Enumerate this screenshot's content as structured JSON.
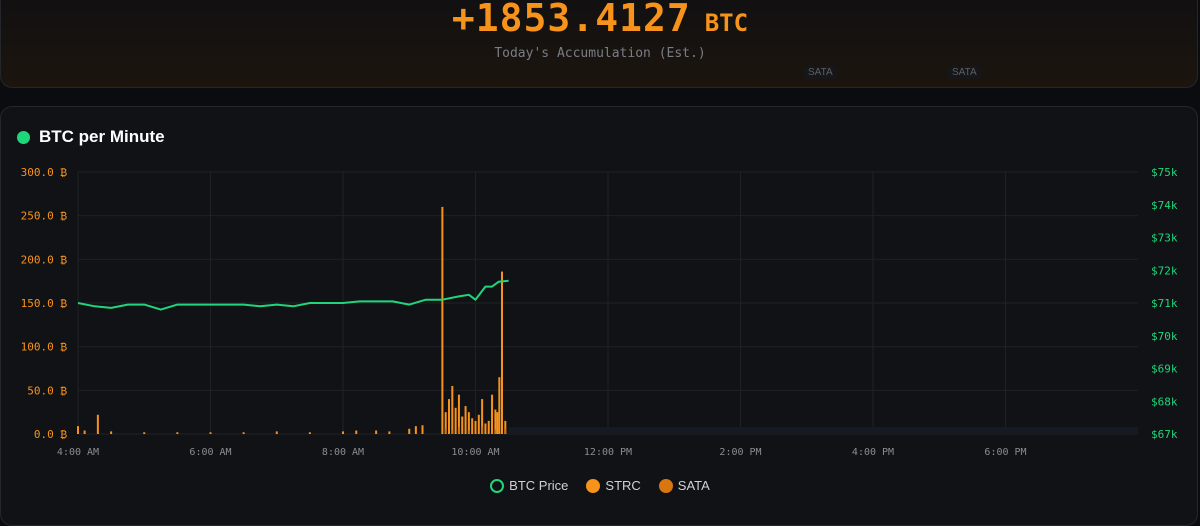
{
  "header": {
    "total_value": "+1853.4127",
    "total_unit": "BTC",
    "subtitle": "Today's Accumulation (Est.)",
    "ghost_label_1": "SATA",
    "ghost_label_2": "SATA"
  },
  "card": {
    "title": "BTC per Minute"
  },
  "colors": {
    "price": "#20d67b",
    "strc": "#f7931a",
    "sata": "#d9760f",
    "grid": "#1f2127"
  },
  "chart_data": {
    "type": "bar",
    "title": "BTC per Minute",
    "x_ticks": [
      "4:00 AM",
      "6:00 AM",
      "8:00 AM",
      "10:00 AM",
      "12:00 PM",
      "2:00 PM",
      "4:00 PM",
      "6:00 PM"
    ],
    "x_tick_hours": [
      4,
      6,
      8,
      10,
      12,
      14,
      16,
      18
    ],
    "xlim_hours": [
      4,
      20
    ],
    "y_left_ticks": [
      "0.0 ₿",
      "50.0 ₿",
      "100.0 ₿",
      "150.0 ₿",
      "200.0 ₿",
      "250.0 ₿",
      "300.0 ₿"
    ],
    "y_left_lim": [
      0,
      300
    ],
    "y_right_ticks": [
      "$67k",
      "$68k",
      "$69k",
      "$70k",
      "$71k",
      "$72k",
      "$73k",
      "$74k",
      "$75k"
    ],
    "y_right_lim": [
      67000,
      75000
    ],
    "legend": [
      "BTC Price",
      "STRC",
      "SATA"
    ],
    "series": [
      {
        "name": "BTC Price",
        "type": "line",
        "axis": "right",
        "x_hours": [
          4.0,
          4.25,
          4.5,
          4.75,
          5.0,
          5.25,
          5.5,
          5.75,
          6.0,
          6.25,
          6.5,
          6.75,
          7.0,
          7.25,
          7.5,
          7.75,
          8.0,
          8.25,
          8.5,
          8.75,
          9.0,
          9.25,
          9.5,
          9.75,
          9.9,
          10.0,
          10.15,
          10.25,
          10.35,
          10.5
        ],
        "values": [
          71000,
          70900,
          70850,
          70950,
          70950,
          70800,
          70950,
          70950,
          70950,
          70950,
          70950,
          70900,
          70950,
          70900,
          71000,
          71000,
          71000,
          71050,
          71050,
          71050,
          70950,
          71100,
          71100,
          71200,
          71250,
          71100,
          71500,
          71500,
          71650,
          71680
        ]
      },
      {
        "name": "STRC",
        "type": "bar",
        "axis": "left",
        "x_hours": [
          4.0,
          4.1,
          4.3,
          4.5,
          5.0,
          5.5,
          6.0,
          6.5,
          7.0,
          7.5,
          8.0,
          8.2,
          8.5,
          8.7,
          9.0,
          9.1,
          9.2,
          9.5,
          9.55,
          9.6,
          9.65,
          9.7,
          9.75,
          9.8,
          9.85,
          9.9,
          9.95,
          10.0,
          10.05,
          10.1,
          10.15,
          10.2,
          10.25,
          10.3,
          10.33,
          10.36,
          10.4,
          10.45
        ],
        "values": [
          9,
          4,
          22,
          3,
          2,
          2,
          2,
          2,
          3,
          2,
          3,
          4,
          4,
          3,
          6,
          9,
          10,
          260,
          25,
          40,
          55,
          30,
          45,
          20,
          32,
          25,
          18,
          15,
          22,
          40,
          12,
          15,
          45,
          28,
          25,
          65,
          186,
          15
        ]
      },
      {
        "name": "SATA",
        "type": "bar",
        "axis": "left",
        "x_hours": [
          9.55,
          9.65,
          9.75,
          9.9,
          10.1,
          10.3,
          10.45
        ],
        "values": [
          6,
          5,
          8,
          4,
          9,
          5,
          6
        ]
      }
    ]
  }
}
